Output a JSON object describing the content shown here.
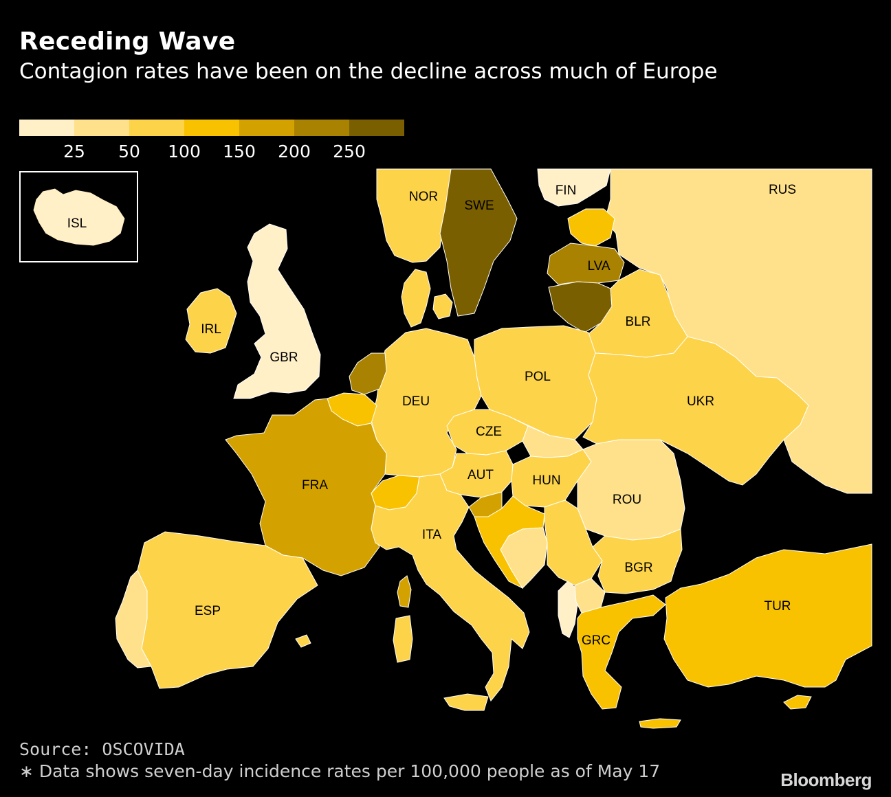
{
  "header": {
    "title": "Receding Wave",
    "subtitle": "Contagion rates have been on the decline across much of Europe"
  },
  "legend": {
    "colors": [
      "#fff0c8",
      "#fee18a",
      "#fdd34a",
      "#f9c200",
      "#d4a200",
      "#a88200",
      "#7a5f00"
    ],
    "ticks": [
      "25",
      "50",
      "100",
      "150",
      "200",
      "250"
    ]
  },
  "map": {
    "countries": [
      {
        "code": "ISL",
        "label": "ISL",
        "color": "#fff0c8"
      },
      {
        "code": "NOR",
        "label": "NOR",
        "color": "#fdd34a"
      },
      {
        "code": "SWE",
        "label": "SWE",
        "color": "#7a5f00"
      },
      {
        "code": "FIN",
        "label": "FIN",
        "color": "#fff0c8"
      },
      {
        "code": "RUS",
        "label": "RUS",
        "color": "#fee18a"
      },
      {
        "code": "LVA",
        "label": "LVA",
        "color": "#a88200"
      },
      {
        "code": "EST",
        "label": "",
        "color": "#f9c200"
      },
      {
        "code": "LTU",
        "label": "",
        "color": "#7a5f00"
      },
      {
        "code": "BLR",
        "label": "BLR",
        "color": "#fdd34a"
      },
      {
        "code": "IRL",
        "label": "IRL",
        "color": "#fdd34a"
      },
      {
        "code": "GBR",
        "label": "GBR",
        "color": "#fff0c8"
      },
      {
        "code": "DNK",
        "label": "",
        "color": "#fdd34a"
      },
      {
        "code": "NLD",
        "label": "",
        "color": "#a88200"
      },
      {
        "code": "BEL",
        "label": "",
        "color": "#f9c200"
      },
      {
        "code": "DEU",
        "label": "DEU",
        "color": "#fdd34a"
      },
      {
        "code": "POL",
        "label": "POL",
        "color": "#fdd34a"
      },
      {
        "code": "UKR",
        "label": "UKR",
        "color": "#fdd34a"
      },
      {
        "code": "CZE",
        "label": "CZE",
        "color": "#fdd34a"
      },
      {
        "code": "FRA",
        "label": "FRA",
        "color": "#d4a200"
      },
      {
        "code": "CHE",
        "label": "",
        "color": "#f9c200"
      },
      {
        "code": "AUT",
        "label": "AUT",
        "color": "#fdd34a"
      },
      {
        "code": "HUN",
        "label": "HUN",
        "color": "#fdd34a"
      },
      {
        "code": "SVK",
        "label": "",
        "color": "#fee18a"
      },
      {
        "code": "ROU",
        "label": "ROU",
        "color": "#fee18a"
      },
      {
        "code": "SVN",
        "label": "",
        "color": "#d4a200"
      },
      {
        "code": "HRV",
        "label": "",
        "color": "#f9c200"
      },
      {
        "code": "BIH",
        "label": "",
        "color": "#fee18a"
      },
      {
        "code": "SRB",
        "label": "",
        "color": "#fdd34a"
      },
      {
        "code": "ITA",
        "label": "ITA",
        "color": "#fdd34a"
      },
      {
        "code": "BGR",
        "label": "BGR",
        "color": "#fdd34a"
      },
      {
        "code": "ALB",
        "label": "",
        "color": "#fff0c8"
      },
      {
        "code": "MKD",
        "label": "",
        "color": "#fee18a"
      },
      {
        "code": "GRC",
        "label": "GRC",
        "color": "#f9c200"
      },
      {
        "code": "TUR",
        "label": "TUR",
        "color": "#f9c200"
      },
      {
        "code": "ESP",
        "label": "ESP",
        "color": "#fdd34a"
      },
      {
        "code": "PRT",
        "label": "",
        "color": "#fee18a"
      }
    ]
  },
  "footer": {
    "source": "Source: OSCOVIDA",
    "note": "∗ Data shows seven-day incidence rates per 100,000 people as of May 17",
    "brand": "Bloomberg"
  }
}
